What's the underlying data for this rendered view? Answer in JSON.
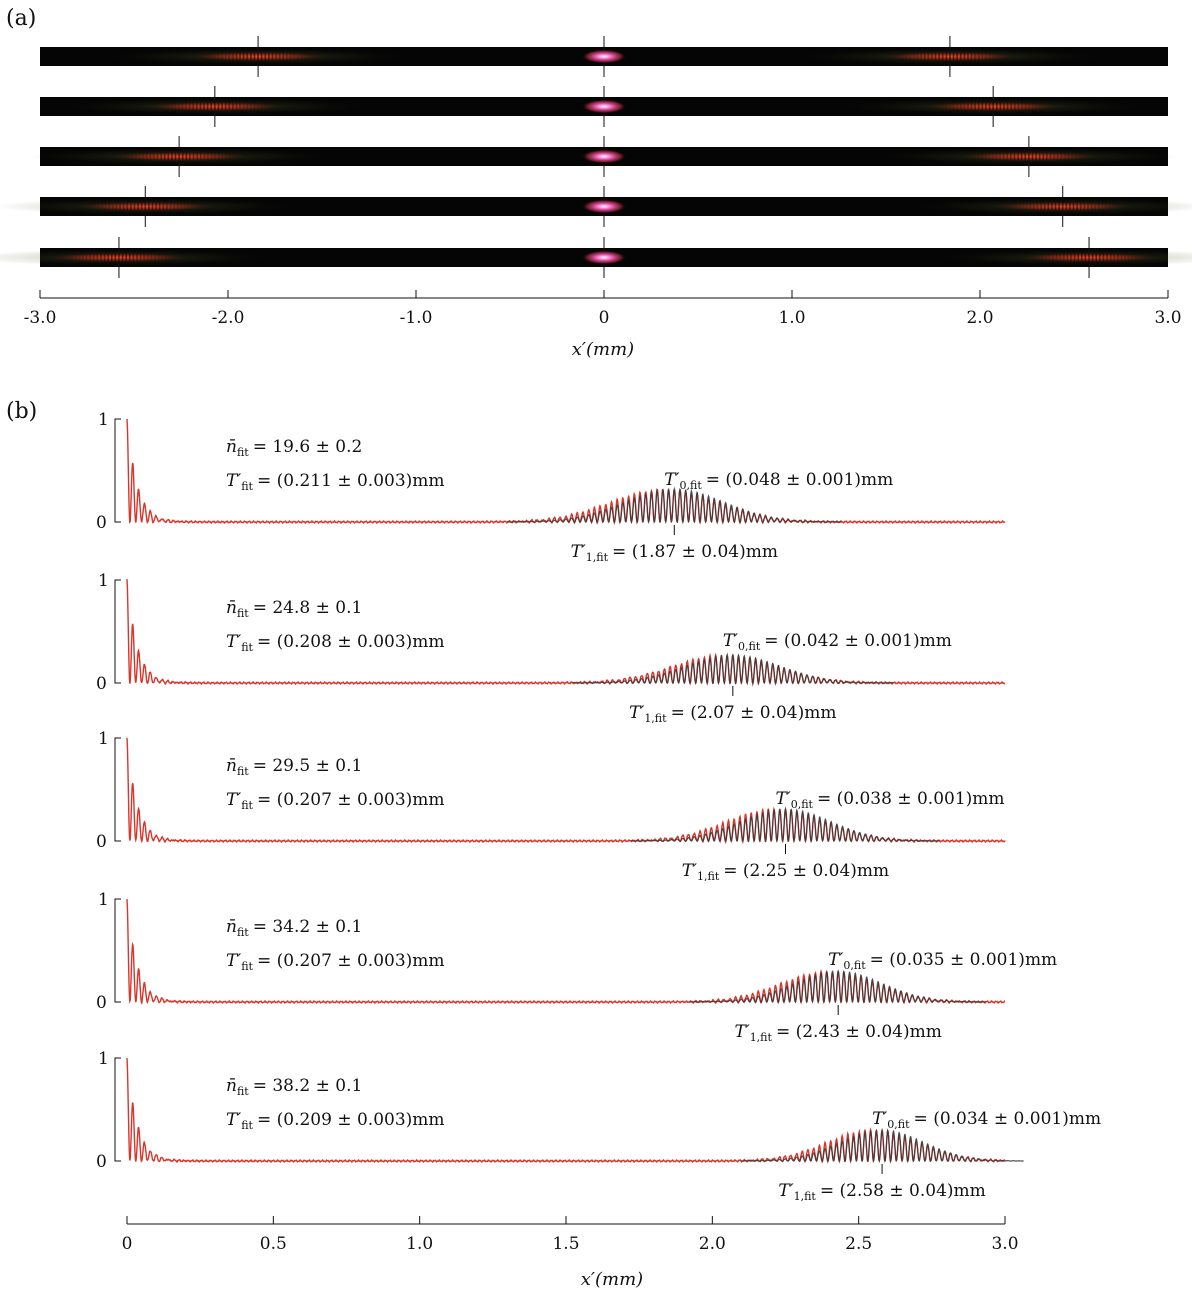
{
  "panels": {
    "a_label": "(a)",
    "b_label": "(b)"
  },
  "colors": {
    "red": "#d9352b",
    "dark": "#3a3a3a",
    "strip_bg": "#050505",
    "peak_core": "#ff6ad0"
  },
  "chart_data": [
    {
      "type": "heatmap",
      "panel": "(a)",
      "xlabel": "x′(mm)",
      "xlim": [
        -3.0,
        3.0
      ],
      "xticks": [
        -3.0,
        -2.0,
        -1.0,
        0,
        1.0,
        2.0,
        3.0
      ],
      "xtick_labels": [
        "-3.0",
        "-2.0",
        "-1.0",
        "0",
        "1.0",
        "2.0",
        "3.0"
      ],
      "strips": [
        {
          "left_marker": -1.84,
          "right_marker": 1.84,
          "center": 0
        },
        {
          "left_marker": -2.07,
          "right_marker": 2.07,
          "center": 0
        },
        {
          "left_marker": -2.26,
          "right_marker": 2.26,
          "center": 0
        },
        {
          "left_marker": -2.44,
          "right_marker": 2.44,
          "center": 0
        },
        {
          "left_marker": -2.58,
          "right_marker": 2.58,
          "center": 0
        }
      ]
    },
    {
      "type": "line",
      "panel": "(b)",
      "xlabel": "x′(mm)",
      "xlim": [
        0,
        3.0
      ],
      "ylim": [
        0,
        1
      ],
      "xticks": [
        0,
        0.5,
        1.0,
        1.5,
        2.0,
        2.5,
        3.0
      ],
      "xtick_labels": [
        "0",
        "0.5",
        "1.0",
        "1.5",
        "2.0",
        "2.5",
        "3.0"
      ],
      "ytick_labels": [
        "0",
        "1"
      ],
      "series_colors": [
        "#d9352b",
        "#3a3a3a"
      ],
      "rows": [
        {
          "n_label": "n̄",
          "n_sub": "fit",
          "n_value": "= 19.6 ± 0.2",
          "T_label": "T′",
          "T_sub": "fit",
          "T_value": "= (0.211 ± 0.003)mm",
          "T0_label": "T′",
          "T0_sub": "0,fit",
          "T0_value": "= (0.048 ± 0.001)mm",
          "T1_label": "T′",
          "T1_sub": "1,fit",
          "T1_value": "= (1.87 ± 0.04)mm",
          "T1_marker": 1.87,
          "peak_amp": 0.32,
          "right_envelope_width": 0.26
        },
        {
          "n_label": "n̄",
          "n_sub": "fit",
          "n_value": "= 24.8 ± 0.1",
          "T_label": "T′",
          "T_sub": "fit",
          "T_value": "= (0.208 ± 0.003)mm",
          "T0_label": "T′",
          "T0_sub": "0,fit",
          "T0_value": "= (0.042 ± 0.001)mm",
          "T1_label": "T′",
          "T1_sub": "1,fit",
          "T1_value": "= (2.07 ± 0.04)mm",
          "T1_marker": 2.07,
          "peak_amp": 0.27,
          "right_envelope_width": 0.25
        },
        {
          "n_label": "n̄",
          "n_sub": "fit",
          "n_value": "= 29.5 ± 0.1",
          "T_label": "T′",
          "T_sub": "fit",
          "T_value": "= (0.207 ± 0.003)mm",
          "T0_label": "T′",
          "T0_sub": "0,fit",
          "T0_value": "= (0.038 ± 0.001)mm",
          "T1_label": "T′",
          "T1_sub": "1,fit",
          "T1_value": "= (2.25 ± 0.04)mm",
          "T1_marker": 2.25,
          "peak_amp": 0.31,
          "right_envelope_width": 0.24
        },
        {
          "n_label": "n̄",
          "n_sub": "fit",
          "n_value": "= 34.2 ± 0.1",
          "T_label": "T′",
          "T_sub": "fit",
          "T_value": "= (0.207 ± 0.003)mm",
          "T0_label": "T′",
          "T0_sub": "0,fit",
          "T0_value": "= (0.035 ± 0.001)mm",
          "T1_label": "T′",
          "T1_sub": "1,fit",
          "T1_value": "= (2.43 ± 0.04)mm",
          "T1_marker": 2.43,
          "peak_amp": 0.3,
          "right_envelope_width": 0.23
        },
        {
          "n_label": "n̄",
          "n_sub": "fit",
          "n_value": "= 38.2 ± 0.1",
          "T_label": "T′",
          "T_sub": "fit",
          "T_value": "= (0.209 ± 0.003)mm",
          "T0_label": "T′",
          "T0_sub": "0,fit",
          "T0_value": "= (0.034 ± 0.001)mm",
          "T1_label": "T′",
          "T1_sub": "1,fit",
          "T1_value": "= (2.58 ± 0.04)mm",
          "T1_marker": 2.58,
          "peak_amp": 0.3,
          "right_envelope_width": 0.22
        }
      ]
    }
  ]
}
